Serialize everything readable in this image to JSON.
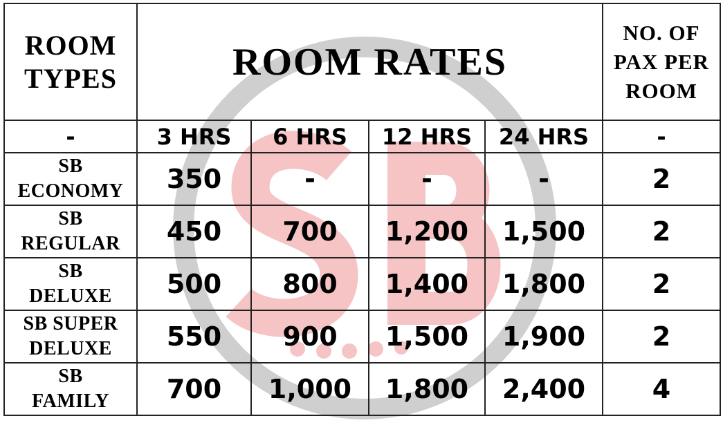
{
  "watermark": {
    "text": "SB",
    "ring_color": "#cfcfcf",
    "letter_color": "#f6c4c4"
  },
  "header": {
    "room_types": "ROOM TYPES",
    "room_rates": "ROOM RATES",
    "pax": "NO. OF PAX PER ROOM"
  },
  "subheader": {
    "room_types": "-",
    "durations": [
      "3 HRS",
      "6 HRS",
      "12 HRS",
      "24 HRS"
    ],
    "pax": "-"
  },
  "rows": [
    {
      "name_line1": "SB",
      "name_line2": "ECONOMY",
      "rates": [
        "350",
        "-",
        "-",
        "-"
      ],
      "pax": "2"
    },
    {
      "name_line1": "SB",
      "name_line2": "REGULAR",
      "rates": [
        "450",
        "700",
        "1,200",
        "1,500"
      ],
      "pax": "2"
    },
    {
      "name_line1": "SB",
      "name_line2": "DELUXE",
      "rates": [
        "500",
        "800",
        "1,400",
        "1,800"
      ],
      "pax": "2"
    },
    {
      "name_line1": "SB SUPER",
      "name_line2": "DELUXE",
      "rates": [
        "550",
        "900",
        "1,500",
        "1,900"
      ],
      "pax": "2"
    },
    {
      "name_line1": "SB",
      "name_line2": "FAMILY",
      "rates": [
        "700",
        "1,000",
        "1,800",
        "2,400"
      ],
      "pax": "4"
    }
  ]
}
